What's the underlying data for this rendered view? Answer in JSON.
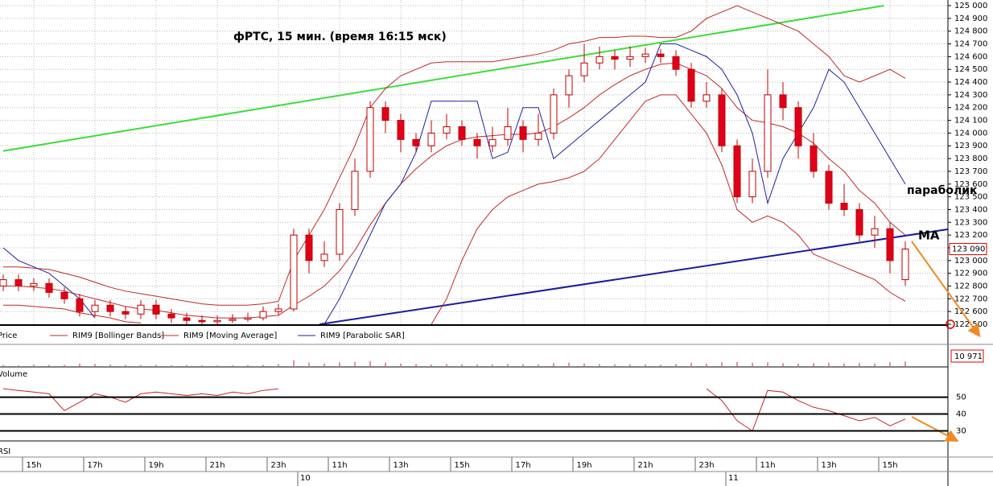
{
  "chart_data": [
    {
      "type": "candlestick",
      "title": "фРТС,  15 мин.  (время 16:15 мск)",
      "price_name": "Price",
      "categories": [
        null,
        null,
        "15h",
        null,
        null,
        null,
        "17h",
        null,
        null,
        null,
        "19h",
        null,
        null,
        null,
        "21h",
        null,
        null,
        null,
        "23h",
        null,
        null,
        null,
        "11h",
        null,
        null,
        null,
        "13h",
        null,
        null,
        null,
        "15h",
        null,
        null,
        null,
        "17h",
        null,
        null,
        null,
        "19h",
        null,
        null,
        null,
        "21h",
        null,
        null,
        null,
        "23h",
        null,
        null,
        null,
        "11h",
        null,
        null,
        null,
        "13h",
        null,
        null,
        null,
        "15h",
        null
      ],
      "dates": [
        null,
        null,
        null,
        null,
        null,
        null,
        null,
        null,
        null,
        null,
        null,
        null,
        null,
        null,
        null,
        null,
        null,
        null,
        null,
        null,
        "10",
        null,
        null,
        null,
        null,
        null,
        null,
        null,
        null,
        null,
        null,
        null,
        null,
        null,
        null,
        null,
        null,
        null,
        null,
        null,
        null,
        null,
        null,
        null,
        null,
        null,
        null,
        null,
        "11",
        null,
        null,
        null,
        null,
        null,
        null,
        null,
        null,
        null,
        null,
        null
      ],
      "open": [
        122800,
        122850,
        122800,
        122820,
        122750,
        122700,
        122600,
        122650,
        122600,
        122580,
        122650,
        122580,
        122550,
        122530,
        122520,
        122530,
        122540,
        122550,
        122600,
        122620,
        123200,
        123000,
        123050,
        123400,
        123700,
        124200,
        124100,
        123950,
        123900,
        124000,
        124050,
        123950,
        123900,
        123950,
        124050,
        123950,
        124000,
        124300,
        124450,
        124550,
        124600,
        124580,
        124600,
        124620,
        124600,
        124500,
        124250,
        124300,
        123900,
        123500,
        123700,
        124300,
        124200,
        123900,
        123700,
        123450,
        123400,
        123200,
        123250,
        122850
      ],
      "high": [
        122890,
        122890,
        122860,
        122860,
        122790,
        122740,
        122690,
        122690,
        122640,
        122690,
        122690,
        122620,
        122590,
        122570,
        122570,
        122580,
        122590,
        122640,
        122660,
        123250,
        123250,
        123150,
        123450,
        123800,
        124250,
        124250,
        124150,
        124000,
        124100,
        124150,
        124100,
        124000,
        124050,
        124200,
        124100,
        124150,
        124350,
        124500,
        124700,
        124680,
        124650,
        124680,
        124670,
        124660,
        124650,
        124550,
        124400,
        124350,
        123950,
        123800,
        124500,
        124400,
        124250,
        124000,
        123750,
        123600,
        123450,
        123350,
        123300,
        123150
      ],
      "low": [
        122760,
        122760,
        122760,
        122710,
        122660,
        122560,
        122560,
        122560,
        122540,
        122540,
        122540,
        122510,
        122500,
        122500,
        122500,
        122510,
        122520,
        122530,
        122570,
        122600,
        122900,
        122950,
        123000,
        123350,
        123650,
        124000,
        123850,
        123850,
        123850,
        123950,
        123900,
        123800,
        123850,
        123900,
        123850,
        123900,
        123950,
        124200,
        124400,
        124500,
        124500,
        124520,
        124550,
        124550,
        124450,
        124200,
        124200,
        123850,
        123450,
        123450,
        123650,
        124100,
        123800,
        123650,
        123400,
        123350,
        123150,
        123100,
        122900,
        122800
      ],
      "close": [
        122850,
        122800,
        122820,
        122750,
        122700,
        122600,
        122650,
        122600,
        122580,
        122650,
        122580,
        122550,
        122530,
        122520,
        122530,
        122540,
        122550,
        122600,
        122620,
        123200,
        123000,
        123050,
        123400,
        123700,
        124200,
        124100,
        123950,
        123900,
        124000,
        124050,
        123950,
        123900,
        123950,
        124050,
        123950,
        124000,
        124300,
        124450,
        124550,
        124600,
        124580,
        124600,
        124620,
        124600,
        124500,
        124250,
        124300,
        123900,
        123500,
        123700,
        124300,
        124200,
        123900,
        123700,
        123450,
        123400,
        123200,
        123250,
        123000,
        123090
      ],
      "up_color": "#ffffff",
      "down_color": "#e0001a",
      "candle_stroke": "#c00000",
      "price_marker": {
        "value": 123090,
        "label": "123 090"
      },
      "series": [
        {
          "name": "RIM9 [Bollinger Bands]",
          "color": "#c0282a",
          "values": [
            122950,
            122950,
            122940,
            122930,
            122900,
            122870,
            122830,
            122790,
            122760,
            122740,
            122720,
            122700,
            122680,
            122660,
            122650,
            122650,
            122650,
            122660,
            122680,
            123000,
            123200,
            123400,
            123650,
            123900,
            124200,
            124350,
            124450,
            124500,
            124550,
            124560,
            124560,
            124560,
            124560,
            124580,
            124600,
            124620,
            124650,
            124700,
            124720,
            124750,
            124750,
            124760,
            124760,
            124750,
            124750,
            124800,
            124900,
            124950,
            125000,
            124950,
            124900,
            124850,
            124800,
            124700,
            124600,
            124450,
            124400,
            124450,
            124500,
            124430
          ],
          "lower": [
            122650,
            122650,
            122640,
            122630,
            122620,
            122590,
            122570,
            122550,
            122520,
            122510,
            null,
            null,
            null,
            null,
            null,
            null,
            null,
            null,
            null,
            null,
            null,
            null,
            null,
            null,
            null,
            null,
            null,
            null,
            122500,
            122700,
            123000,
            123250,
            123400,
            123500,
            123550,
            123600,
            123620,
            123650,
            123700,
            123800,
            123950,
            124100,
            124250,
            124300,
            124300,
            124150,
            124000,
            123750,
            123400,
            123300,
            123350,
            123300,
            123200,
            123050,
            123000,
            122950,
            122900,
            122850,
            122750,
            122680
          ]
        },
        {
          "name": "RIM9 [Moving Average]",
          "color": "#c0282a",
          "values": [
            122800,
            122800,
            122790,
            122780,
            122760,
            122730,
            122700,
            122670,
            122640,
            122620,
            122610,
            122590,
            122570,
            122560,
            122550,
            122550,
            122550,
            122560,
            122570,
            122650,
            122720,
            122800,
            122920,
            123080,
            123280,
            123450,
            123600,
            123720,
            123820,
            123900,
            123950,
            123970,
            123980,
            123990,
            123990,
            124000,
            124050,
            124120,
            124200,
            124300,
            124380,
            124450,
            124500,
            124540,
            124550,
            124500,
            124450,
            124350,
            124200,
            124100,
            124080,
            124050,
            124000,
            123920,
            123800,
            123700,
            123550,
            123450,
            123300,
            123200
          ]
        },
        {
          "name": "RIM9 [Parabolic SAR]",
          "color": "#2020a0",
          "values": [
            123100,
            123000,
            122950,
            122900,
            122800,
            122700,
            122550,
            null,
            null,
            null,
            null,
            null,
            null,
            null,
            null,
            null,
            null,
            null,
            null,
            null,
            null,
            122500,
            122700,
            122950,
            123200,
            123450,
            123600,
            123850,
            124250,
            124250,
            124250,
            124250,
            123800,
            123850,
            124200,
            124200,
            123800,
            123900,
            124000,
            124100,
            124200,
            124300,
            124400,
            124700,
            124700,
            124650,
            124600,
            124500,
            124300,
            124000,
            123450,
            123800,
            124000,
            124200,
            124500,
            124400,
            124200,
            124000,
            123800,
            123600
          ]
        }
      ],
      "trendlines": [
        {
          "color": "#3ddc3a",
          "x": [
            0,
            57.6
          ],
          "y": [
            123860,
            125000
          ]
        },
        {
          "color": "#1c1c9c",
          "x": [
            20.7,
            64.8
          ],
          "y": [
            122500,
            123300
          ]
        }
      ],
      "annotations": [
        "параболик",
        "MA"
      ],
      "ylim": [
        122500,
        125000
      ],
      "yticks": [
        {
          "value": 122500,
          "label": "122 500"
        },
        {
          "value": 122600,
          "label": "122 600"
        },
        {
          "value": 122700,
          "label": "122 700"
        },
        {
          "value": 122800,
          "label": "122 800"
        },
        {
          "value": 122900,
          "label": "122 900"
        },
        {
          "value": 123000,
          "label": "123 000"
        },
        {
          "value": 123100,
          "label": "123 100"
        },
        {
          "value": 123200,
          "label": "123 200"
        },
        {
          "value": 123300,
          "label": "123 300"
        },
        {
          "value": 123400,
          "label": "123 400"
        },
        {
          "value": 123500,
          "label": "123 500"
        },
        {
          "value": 123600,
          "label": "123 600"
        },
        {
          "value": 123700,
          "label": "123 700"
        },
        {
          "value": 123800,
          "label": "123 800"
        },
        {
          "value": 123900,
          "label": "123 900"
        },
        {
          "value": 124000,
          "label": "124 000"
        },
        {
          "value": 124100,
          "label": "124 100"
        },
        {
          "value": 124200,
          "label": "124 200"
        },
        {
          "value": 124300,
          "label": "124 300"
        },
        {
          "value": 124400,
          "label": "124 400"
        },
        {
          "value": 124500,
          "label": "124 500"
        },
        {
          "value": 124600,
          "label": "124 600"
        },
        {
          "value": 124700,
          "label": "124 700"
        },
        {
          "value": 124800,
          "label": "124 800"
        },
        {
          "value": 124900,
          "label": "124 900"
        },
        {
          "value": 125000,
          "label": "125 000"
        }
      ],
      "grid": true
    },
    {
      "type": "bar",
      "title": "Volume",
      "color": "#c0282a",
      "values": [
        3000,
        2000,
        4000,
        2500,
        3000,
        6000,
        5000,
        4000,
        3000,
        2500,
        3000,
        2000,
        2500,
        2000,
        1500,
        2000,
        2500,
        3000,
        5000,
        14000,
        8000,
        6000,
        9000,
        10000,
        12000,
        8000,
        6000,
        5000,
        4000,
        5000,
        4500,
        4000,
        4000,
        5000,
        4500,
        4000,
        7000,
        8000,
        6000,
        5000,
        4500,
        4000,
        4000,
        3500,
        5000,
        8000,
        6000,
        9000,
        10000,
        8000,
        9000,
        7000,
        6000,
        7000,
        8000,
        6000,
        7000,
        6000,
        9000,
        10971
      ],
      "value_marker": {
        "value": 10971,
        "label": "10 971"
      },
      "ylim": [
        0,
        40000
      ]
    },
    {
      "type": "line",
      "title": "RSI",
      "color": "#c0282a",
      "values": [
        55,
        54,
        53,
        52,
        42,
        47,
        52,
        50,
        47,
        52,
        53,
        52,
        51,
        52,
        51,
        53,
        52,
        54,
        55,
        null,
        null,
        null,
        null,
        null,
        null,
        null,
        null,
        null,
        null,
        null,
        null,
        null,
        null,
        null,
        null,
        null,
        null,
        null,
        null,
        null,
        null,
        null,
        null,
        null,
        null,
        null,
        55,
        48,
        36,
        30,
        54,
        53,
        48,
        44,
        42,
        39,
        36,
        38,
        33,
        37
      ],
      "ylim": [
        25,
        56
      ],
      "yticks": [
        30,
        40,
        50
      ]
    }
  ]
}
